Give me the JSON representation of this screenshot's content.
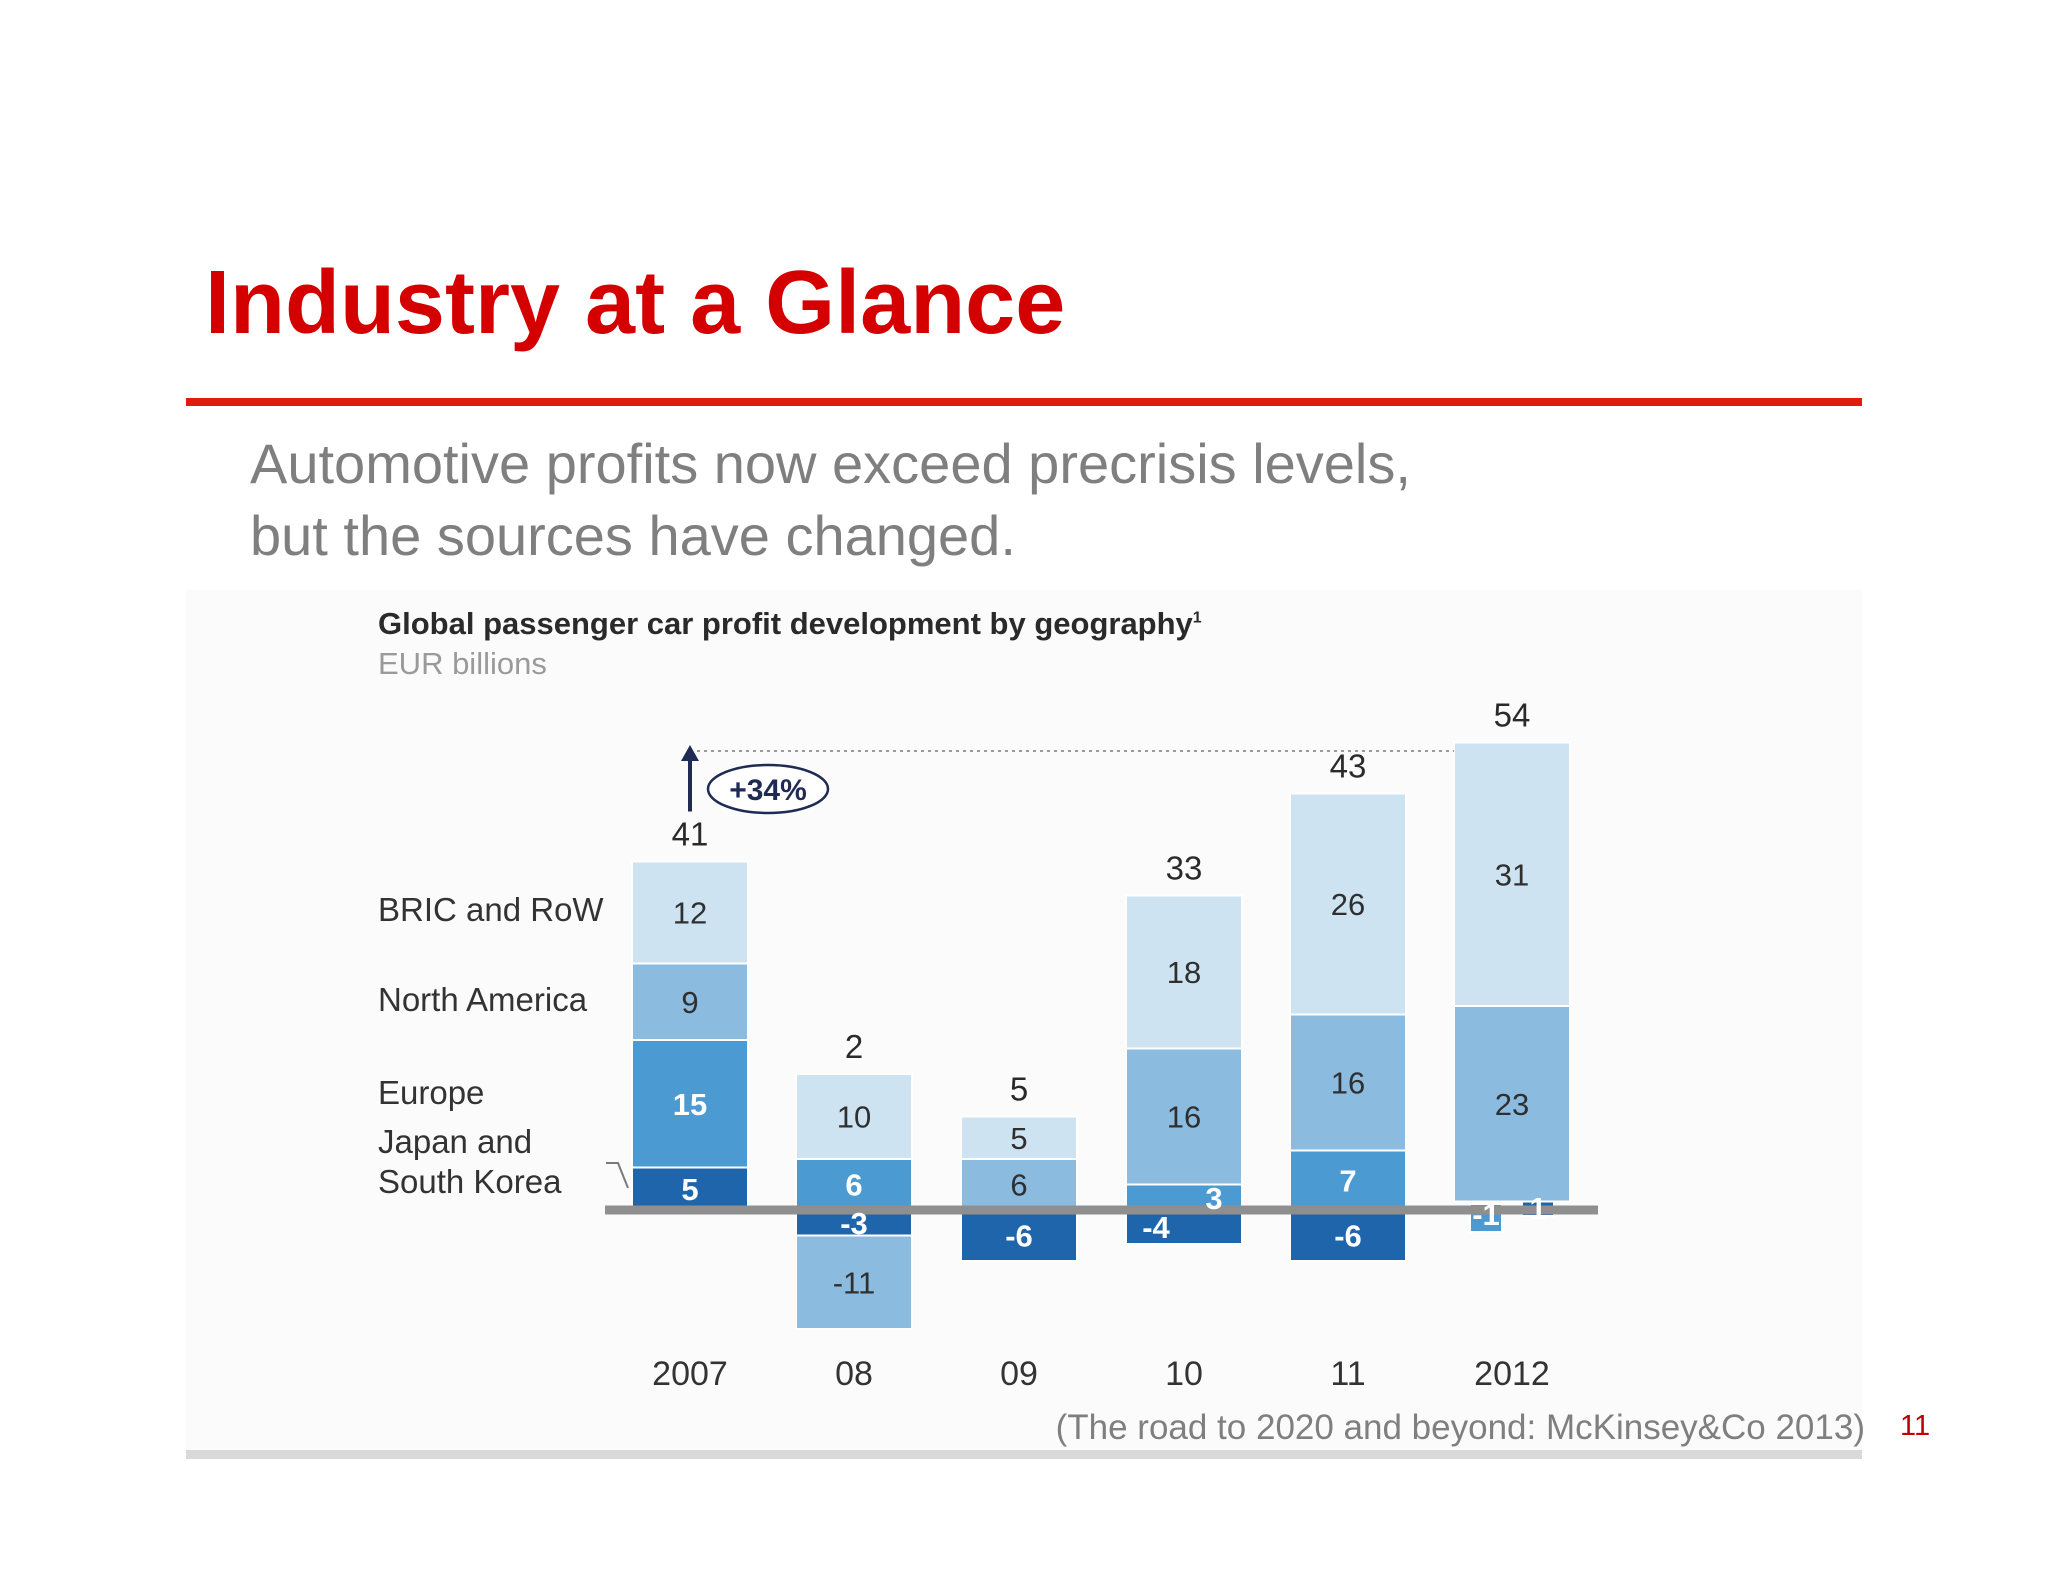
{
  "slide": {
    "title": "Industry at a Glance",
    "subtitle_lines": [
      "Automotive profits now exceed precrisis levels,",
      "but the sources have changed."
    ],
    "source": "(The road to 2020 and beyond: McKinsey&Co 2013)",
    "page_number": "11"
  },
  "colors": {
    "title": "#d40000",
    "rule": "#e21b0c",
    "bric_and_row": "#cde3f2",
    "north_america": "#8cbbe0",
    "europe": "#4b9ad2",
    "japan_and_south_korea": "#1f65ab",
    "baseline": "#8f8f8f",
    "callout": "#1f2a55"
  },
  "chart_data": {
    "type": "bar",
    "stacked": true,
    "title": "Global passenger car profit development by geography",
    "title_footnote": "1",
    "units": "EUR billions",
    "categories": [
      "2007",
      "08",
      "09",
      "10",
      "11",
      "2012"
    ],
    "series": [
      {
        "name": "Japan and South Korea",
        "values": [
          5,
          -3,
          -6,
          -4,
          -6,
          1
        ]
      },
      {
        "name": "Europe",
        "values": [
          15,
          6,
          0,
          3,
          7,
          -1
        ]
      },
      {
        "name": "North America",
        "values": [
          9,
          -11,
          6,
          16,
          16,
          23
        ]
      },
      {
        "name": "BRIC and RoW",
        "values": [
          12,
          10,
          5,
          18,
          26,
          31
        ]
      }
    ],
    "segment_labels": [
      [
        {
          "series": 0,
          "text": "5"
        },
        {
          "series": 1,
          "text": "15"
        },
        {
          "series": 2,
          "text": "9"
        },
        {
          "series": 3,
          "text": "12"
        }
      ],
      [
        {
          "series": 0,
          "text": "-3"
        },
        {
          "series": 1,
          "text": "6"
        },
        {
          "series": 2,
          "text": "-11"
        },
        {
          "series": 3,
          "text": "10"
        }
      ],
      [
        {
          "series": 0,
          "text": "-6"
        },
        {
          "series": 2,
          "text": "6"
        },
        {
          "series": 3,
          "text": "5"
        }
      ],
      [
        {
          "series": 0,
          "text": "-4"
        },
        {
          "series": 1,
          "text": "3"
        },
        {
          "series": 2,
          "text": "16"
        },
        {
          "series": 3,
          "text": "18"
        }
      ],
      [
        {
          "series": 0,
          "text": "-6"
        },
        {
          "series": 1,
          "text": "7"
        },
        {
          "series": 2,
          "text": "16"
        },
        {
          "series": 3,
          "text": "26"
        }
      ],
      [
        {
          "series": 0,
          "text": "1"
        },
        {
          "series": 1,
          "text": "-1"
        },
        {
          "series": 2,
          "text": "23"
        },
        {
          "series": 3,
          "text": "31"
        }
      ]
    ],
    "totals": [
      41,
      2,
      5,
      33,
      43,
      54
    ],
    "annotation": {
      "text": "+34%",
      "from_category": "2007",
      "to_category": "2012"
    },
    "legend": [
      "BRIC and RoW",
      "North America",
      "Europe",
      "Japan and South Korea"
    ],
    "legend_lines": {
      "bric_and_row": [
        "BRIC and RoW"
      ],
      "north_america": [
        "North America"
      ],
      "europe": [
        "Europe"
      ],
      "japan_and_south_korea": [
        "Japan and",
        "South Korea"
      ]
    },
    "legend_placement": "left",
    "ylim": [
      -15,
      58
    ],
    "grid": false
  }
}
